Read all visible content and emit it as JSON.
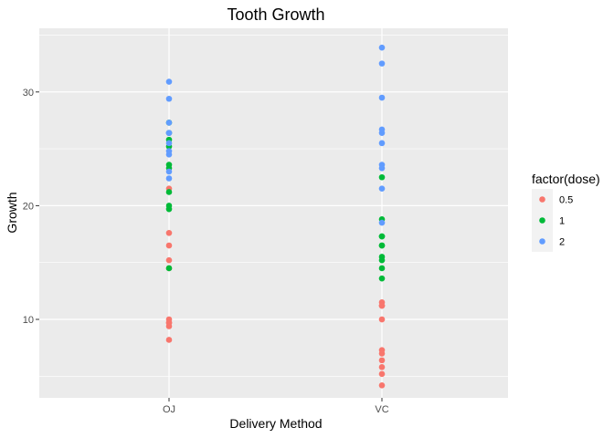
{
  "chart_data": {
    "type": "scatter",
    "title": "Tooth Growth",
    "xlabel": "Delivery Method",
    "ylabel": "Growth",
    "categories": [
      "OJ",
      "VC"
    ],
    "ylim": [
      3.1,
      35.6
    ],
    "y_ticks": [
      10,
      20,
      30
    ],
    "grid": true,
    "legend": {
      "title": "factor(dose)",
      "position": "right"
    },
    "series": [
      {
        "name": "0.5",
        "color": "#F8766D",
        "points": [
          {
            "x": "OJ",
            "y": 15.2
          },
          {
            "x": "OJ",
            "y": 21.5
          },
          {
            "x": "OJ",
            "y": 17.6
          },
          {
            "x": "OJ",
            "y": 9.7
          },
          {
            "x": "OJ",
            "y": 14.5
          },
          {
            "x": "OJ",
            "y": 10.0
          },
          {
            "x": "OJ",
            "y": 8.2
          },
          {
            "x": "OJ",
            "y": 9.4
          },
          {
            "x": "OJ",
            "y": 16.5
          },
          {
            "x": "OJ",
            "y": 9.7
          },
          {
            "x": "VC",
            "y": 4.2
          },
          {
            "x": "VC",
            "y": 11.5
          },
          {
            "x": "VC",
            "y": 7.3
          },
          {
            "x": "VC",
            "y": 5.8
          },
          {
            "x": "VC",
            "y": 6.4
          },
          {
            "x": "VC",
            "y": 10.0
          },
          {
            "x": "VC",
            "y": 11.2
          },
          {
            "x": "VC",
            "y": 11.2
          },
          {
            "x": "VC",
            "y": 5.2
          },
          {
            "x": "VC",
            "y": 7.0
          }
        ]
      },
      {
        "name": "1",
        "color": "#00BA38",
        "points": [
          {
            "x": "OJ",
            "y": 19.7
          },
          {
            "x": "OJ",
            "y": 23.3
          },
          {
            "x": "OJ",
            "y": 23.6
          },
          {
            "x": "OJ",
            "y": 26.4
          },
          {
            "x": "OJ",
            "y": 20.0
          },
          {
            "x": "OJ",
            "y": 25.2
          },
          {
            "x": "OJ",
            "y": 25.8
          },
          {
            "x": "OJ",
            "y": 21.2
          },
          {
            "x": "OJ",
            "y": 14.5
          },
          {
            "x": "OJ",
            "y": 27.3
          },
          {
            "x": "VC",
            "y": 16.5
          },
          {
            "x": "VC",
            "y": 16.5
          },
          {
            "x": "VC",
            "y": 15.2
          },
          {
            "x": "VC",
            "y": 17.3
          },
          {
            "x": "VC",
            "y": 22.5
          },
          {
            "x": "VC",
            "y": 17.3
          },
          {
            "x": "VC",
            "y": 13.6
          },
          {
            "x": "VC",
            "y": 14.5
          },
          {
            "x": "VC",
            "y": 18.8
          },
          {
            "x": "VC",
            "y": 15.5
          }
        ]
      },
      {
        "name": "2",
        "color": "#619CFF",
        "points": [
          {
            "x": "OJ",
            "y": 25.5
          },
          {
            "x": "OJ",
            "y": 26.4
          },
          {
            "x": "OJ",
            "y": 22.4
          },
          {
            "x": "OJ",
            "y": 24.5
          },
          {
            "x": "OJ",
            "y": 24.8
          },
          {
            "x": "OJ",
            "y": 30.9
          },
          {
            "x": "OJ",
            "y": 26.4
          },
          {
            "x": "OJ",
            "y": 27.3
          },
          {
            "x": "OJ",
            "y": 29.4
          },
          {
            "x": "OJ",
            "y": 23.0
          },
          {
            "x": "VC",
            "y": 23.6
          },
          {
            "x": "VC",
            "y": 18.5
          },
          {
            "x": "VC",
            "y": 33.9
          },
          {
            "x": "VC",
            "y": 25.5
          },
          {
            "x": "VC",
            "y": 26.4
          },
          {
            "x": "VC",
            "y": 32.5
          },
          {
            "x": "VC",
            "y": 26.7
          },
          {
            "x": "VC",
            "y": 21.5
          },
          {
            "x": "VC",
            "y": 23.3
          },
          {
            "x": "VC",
            "y": 29.5
          }
        ]
      }
    ]
  }
}
